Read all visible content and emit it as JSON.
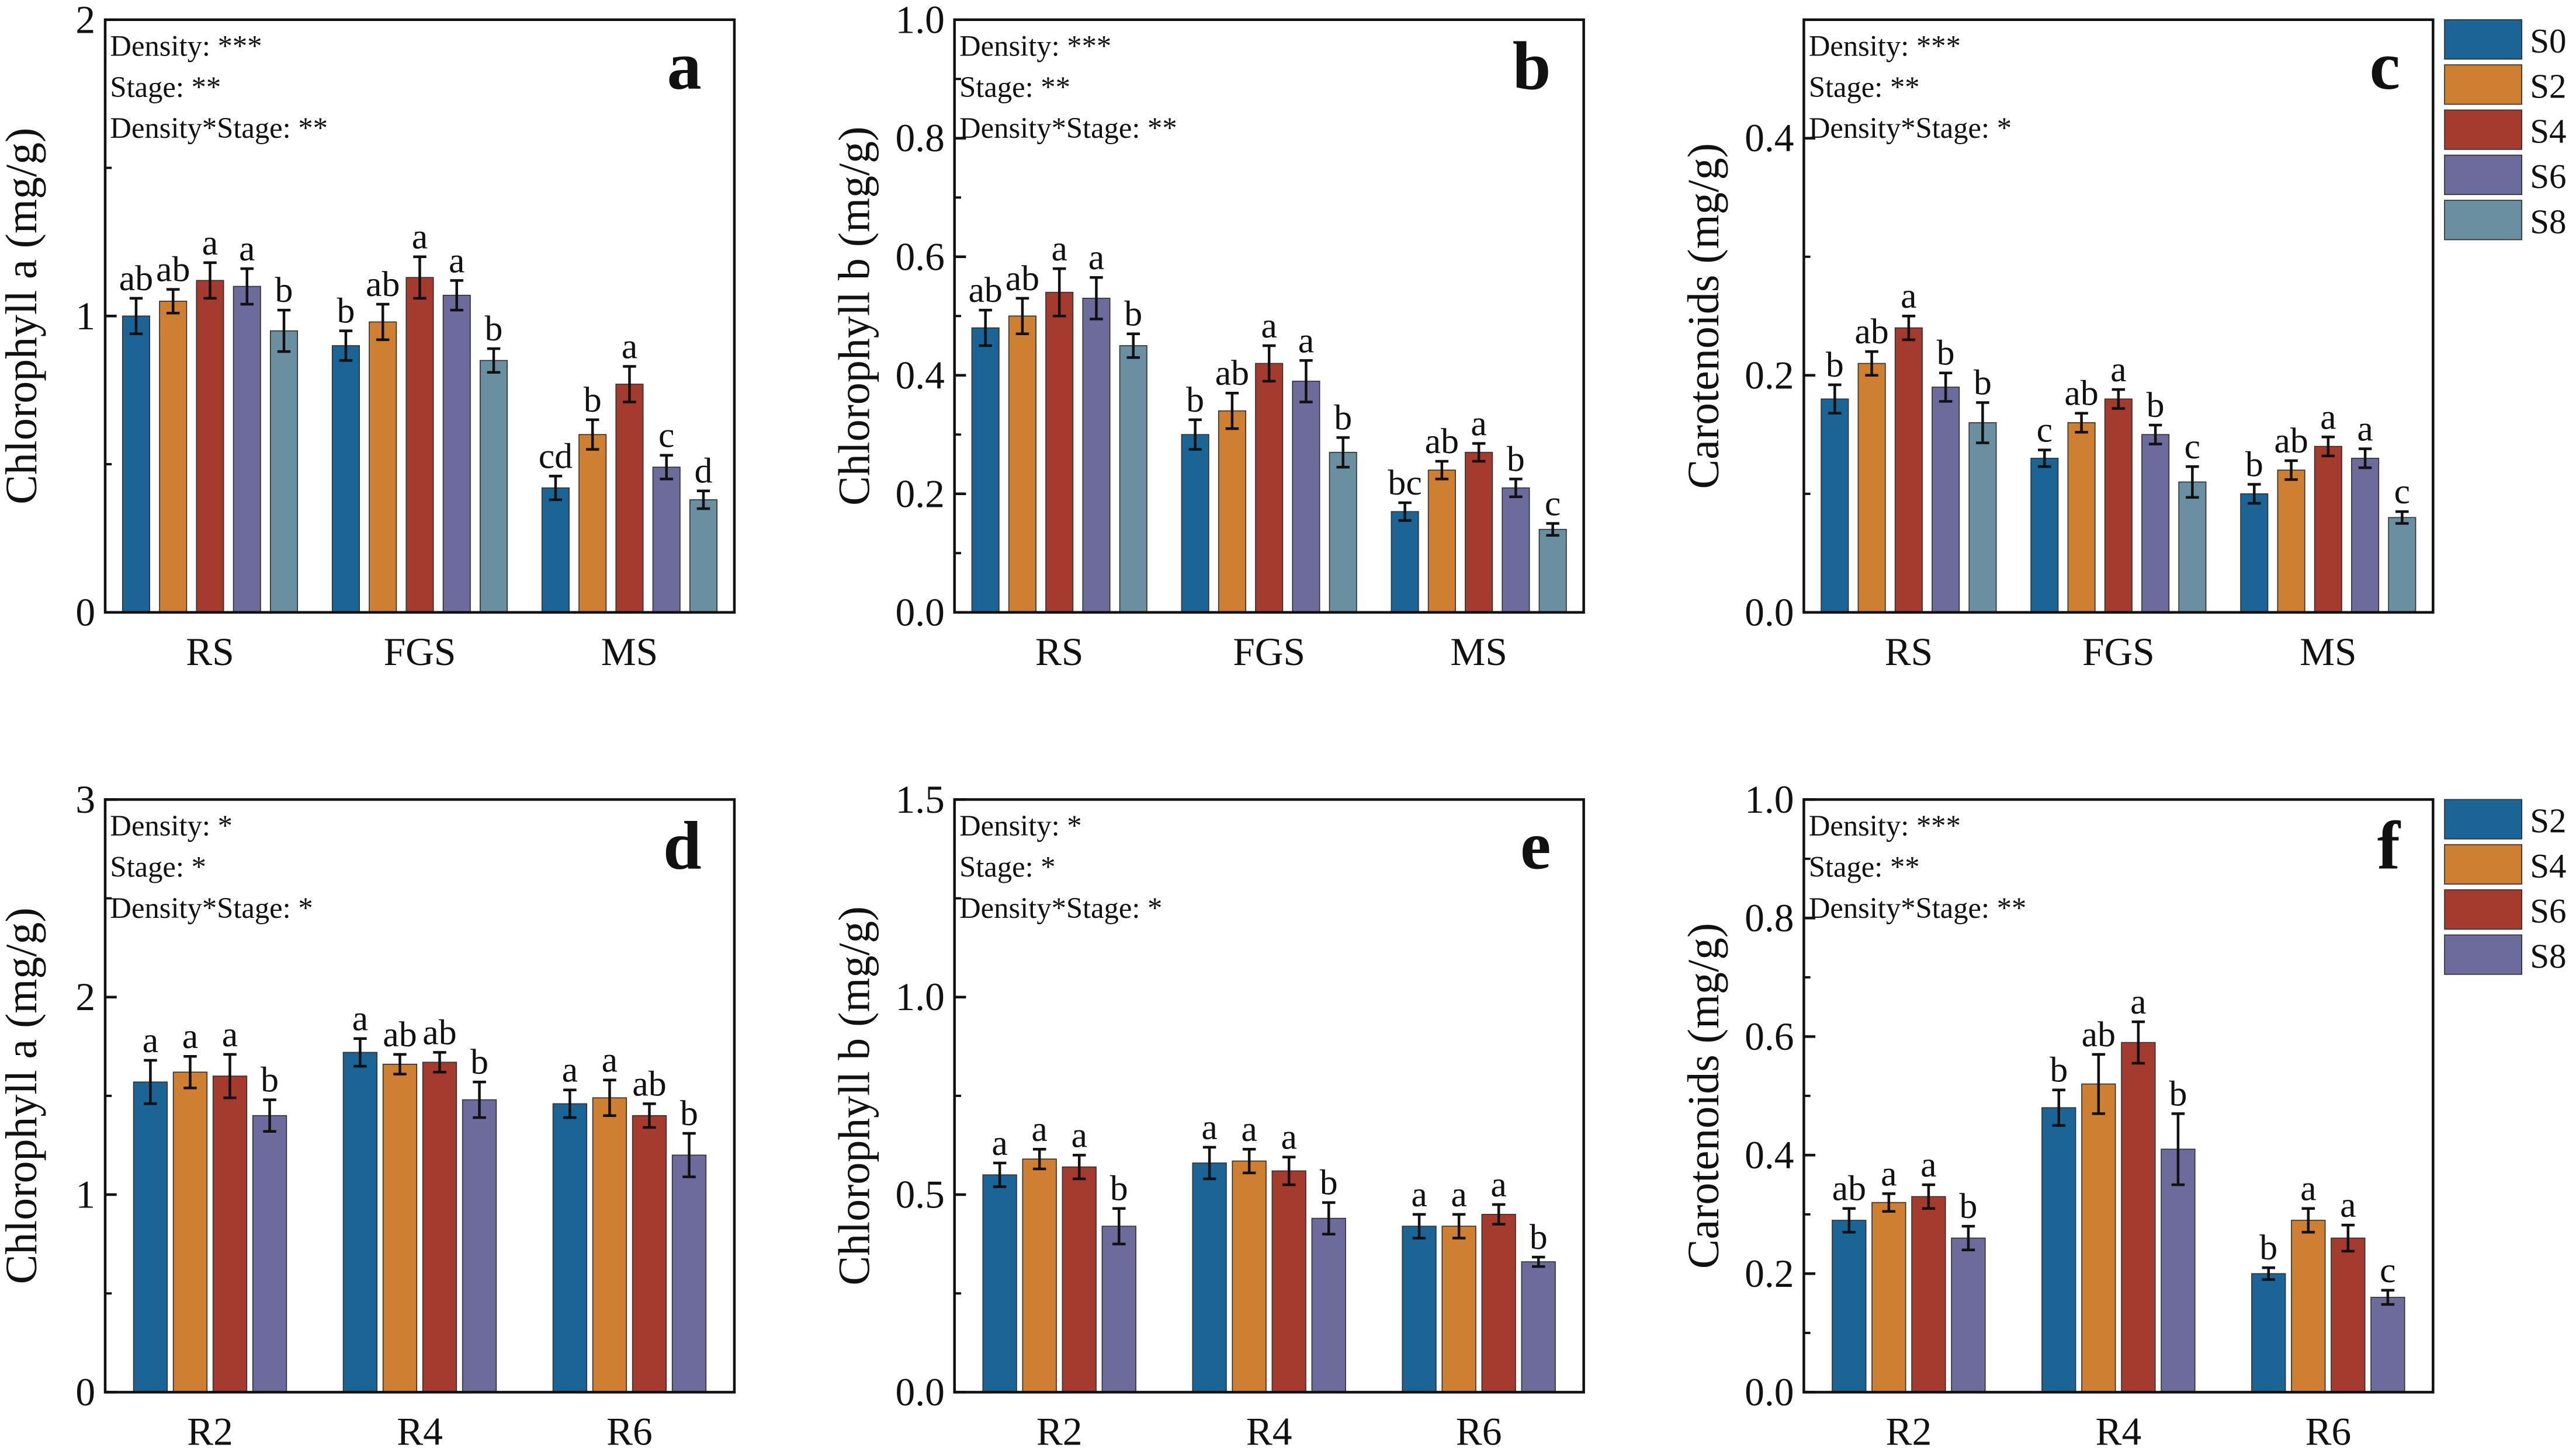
{
  "colors": [
    "#1a6496",
    "#cf7f31",
    "#a53a2f",
    "#6c6b9b",
    "#6a8fa1"
  ],
  "legends": [
    {
      "entries": [
        "S0",
        "S2",
        "S4",
        "S6",
        "S8"
      ]
    },
    {
      "entries": [
        "S2",
        "S4",
        "S6",
        "S8"
      ]
    }
  ],
  "chart_data": [
    {
      "type": "bar",
      "panel": "a",
      "ylabel": "Chlorophyll a (mg/g)",
      "ylim": [
        0,
        2
      ],
      "yticks": [
        "0",
        "1",
        "2"
      ],
      "ytick_values": [
        0,
        1,
        2
      ],
      "minor_step": 0.5,
      "stats": [
        "Density: ***",
        "Stage: **",
        "Density*Stage: **"
      ],
      "categories": [
        "RS",
        "FGS",
        "MS"
      ],
      "series_names": [
        "S0",
        "S2",
        "S4",
        "S6",
        "S8"
      ],
      "values": [
        [
          1.0,
          1.05,
          1.12,
          1.1,
          0.95
        ],
        [
          0.9,
          0.98,
          1.13,
          1.07,
          0.85
        ],
        [
          0.42,
          0.6,
          0.77,
          0.49,
          0.38
        ]
      ],
      "errors": [
        [
          0.06,
          0.04,
          0.06,
          0.06,
          0.07
        ],
        [
          0.05,
          0.06,
          0.07,
          0.05,
          0.04
        ],
        [
          0.04,
          0.05,
          0.06,
          0.04,
          0.03
        ]
      ],
      "letters": [
        [
          "ab",
          "ab",
          "a",
          "a",
          "b"
        ],
        [
          "b",
          "ab",
          "a",
          "a",
          "b"
        ],
        [
          "cd",
          "b",
          "a",
          "c",
          "d"
        ]
      ]
    },
    {
      "type": "bar",
      "panel": "b",
      "ylabel": "Chlorophyll b (mg/g)",
      "ylim": [
        0,
        1.0
      ],
      "yticks": [
        "0.0",
        "0.2",
        "0.4",
        "0.6",
        "0.8",
        "1.0"
      ],
      "ytick_values": [
        0,
        0.2,
        0.4,
        0.6,
        0.8,
        1.0
      ],
      "minor_step": 0.1,
      "stats": [
        "Density: ***",
        "Stage: **",
        "Density*Stage: **"
      ],
      "categories": [
        "RS",
        "FGS",
        "MS"
      ],
      "series_names": [
        "S0",
        "S2",
        "S4",
        "S6",
        "S8"
      ],
      "values": [
        [
          0.48,
          0.5,
          0.54,
          0.53,
          0.45
        ],
        [
          0.3,
          0.34,
          0.42,
          0.39,
          0.27
        ],
        [
          0.17,
          0.24,
          0.27,
          0.21,
          0.14
        ]
      ],
      "errors": [
        [
          0.03,
          0.03,
          0.04,
          0.035,
          0.02
        ],
        [
          0.025,
          0.03,
          0.03,
          0.035,
          0.025
        ],
        [
          0.015,
          0.015,
          0.015,
          0.015,
          0.01
        ]
      ],
      "letters": [
        [
          "ab",
          "ab",
          "a",
          "a",
          "b"
        ],
        [
          "b",
          "ab",
          "a",
          "a",
          "b"
        ],
        [
          "bc",
          "ab",
          "a",
          "b",
          "c"
        ]
      ]
    },
    {
      "type": "bar",
      "panel": "c",
      "ylabel": "Carotenoids (mg/g)",
      "ylim": [
        0,
        0.5
      ],
      "yticks": [
        "0.0",
        "0.2",
        "0.4"
      ],
      "ytick_values": [
        0,
        0.2,
        0.4
      ],
      "minor_step": 0.1,
      "stats": [
        "Density: ***",
        "Stage: **",
        "Density*Stage: *"
      ],
      "categories": [
        "RS",
        "FGS",
        "MS"
      ],
      "series_names": [
        "S0",
        "S2",
        "S4",
        "S6",
        "S8"
      ],
      "values": [
        [
          0.18,
          0.21,
          0.24,
          0.19,
          0.16
        ],
        [
          0.13,
          0.16,
          0.18,
          0.15,
          0.11
        ],
        [
          0.1,
          0.12,
          0.14,
          0.13,
          0.08
        ]
      ],
      "errors": [
        [
          0.012,
          0.01,
          0.01,
          0.012,
          0.017
        ],
        [
          0.007,
          0.008,
          0.008,
          0.008,
          0.013
        ],
        [
          0.008,
          0.008,
          0.008,
          0.008,
          0.005
        ]
      ],
      "letters": [
        [
          "b",
          "ab",
          "a",
          "b",
          "b"
        ],
        [
          "c",
          "ab",
          "a",
          "b",
          "c"
        ],
        [
          "b",
          "ab",
          "a",
          "a",
          "c"
        ]
      ]
    },
    {
      "type": "bar",
      "panel": "d",
      "ylabel": "Chlorophyll a (mg/g)",
      "ylim": [
        0,
        3
      ],
      "yticks": [
        "0",
        "1",
        "2",
        "3"
      ],
      "ytick_values": [
        0,
        1,
        2,
        3
      ],
      "minor_step": 0.5,
      "stats": [
        "Density: *",
        "Stage: *",
        "Density*Stage: *"
      ],
      "categories": [
        "R2",
        "R4",
        "R6"
      ],
      "series_names": [
        "S2",
        "S4",
        "S6",
        "S8"
      ],
      "values": [
        [
          1.57,
          1.62,
          1.6,
          1.4
        ],
        [
          1.72,
          1.66,
          1.67,
          1.48
        ],
        [
          1.46,
          1.49,
          1.4,
          1.2
        ]
      ],
      "errors": [
        [
          0.11,
          0.08,
          0.11,
          0.08
        ],
        [
          0.07,
          0.05,
          0.05,
          0.09
        ],
        [
          0.07,
          0.09,
          0.06,
          0.11
        ]
      ],
      "letters": [
        [
          "a",
          "a",
          "a",
          "b"
        ],
        [
          "a",
          "ab",
          "ab",
          "b"
        ],
        [
          "a",
          "a",
          "ab",
          "b"
        ]
      ]
    },
    {
      "type": "bar",
      "panel": "e",
      "ylabel": "Chlorophyll b (mg/g)",
      "ylim": [
        0,
        1.5
      ],
      "yticks": [
        "0.0",
        "0.5",
        "1.0",
        "1.5"
      ],
      "ytick_values": [
        0,
        0.5,
        1.0,
        1.5
      ],
      "minor_step": 0.25,
      "stats": [
        "Density: *",
        "Stage: *",
        "Density*Stage: *"
      ],
      "categories": [
        "R2",
        "R4",
        "R6"
      ],
      "series_names": [
        "S2",
        "S4",
        "S6",
        "S8"
      ],
      "values": [
        [
          0.55,
          0.59,
          0.57,
          0.42
        ],
        [
          0.58,
          0.585,
          0.56,
          0.44
        ],
        [
          0.42,
          0.42,
          0.45,
          0.33
        ]
      ],
      "errors": [
        [
          0.03,
          0.025,
          0.03,
          0.045
        ],
        [
          0.04,
          0.03,
          0.035,
          0.04
        ],
        [
          0.03,
          0.03,
          0.025,
          0.012
        ]
      ],
      "letters": [
        [
          "a",
          "a",
          "a",
          "b"
        ],
        [
          "a",
          "a",
          "a",
          "b"
        ],
        [
          "a",
          "a",
          "a",
          "b"
        ]
      ]
    },
    {
      "type": "bar",
      "panel": "f",
      "ylabel": "Carotenoids (mg/g)",
      "ylim": [
        0,
        1.0
      ],
      "yticks": [
        "0.0",
        "0.2",
        "0.4",
        "0.6",
        "0.8",
        "1.0"
      ],
      "ytick_values": [
        0,
        0.2,
        0.4,
        0.6,
        0.8,
        1.0
      ],
      "minor_step": 0.1,
      "stats": [
        "Density: ***",
        "Stage: **",
        "Density*Stage: **"
      ],
      "categories": [
        "R2",
        "R4",
        "R6"
      ],
      "series_names": [
        "S2",
        "S4",
        "S6",
        "S8"
      ],
      "values": [
        [
          0.29,
          0.32,
          0.33,
          0.26
        ],
        [
          0.48,
          0.52,
          0.59,
          0.41
        ],
        [
          0.2,
          0.29,
          0.26,
          0.16
        ]
      ],
      "errors": [
        [
          0.02,
          0.015,
          0.02,
          0.02
        ],
        [
          0.03,
          0.05,
          0.035,
          0.06
        ],
        [
          0.01,
          0.02,
          0.022,
          0.012
        ]
      ],
      "letters": [
        [
          "ab",
          "a",
          "a",
          "b"
        ],
        [
          "b",
          "ab",
          "a",
          "b"
        ],
        [
          "b",
          "a",
          "a",
          "c"
        ]
      ]
    }
  ]
}
